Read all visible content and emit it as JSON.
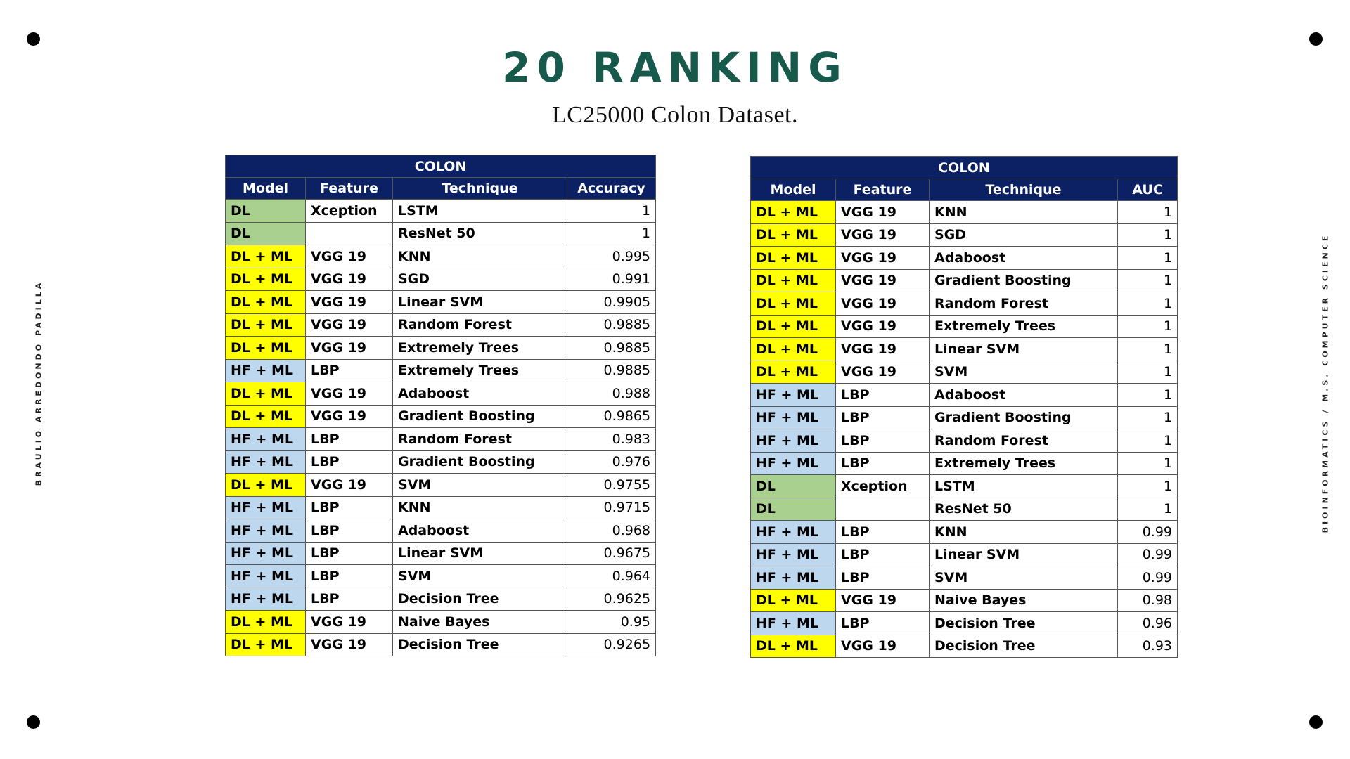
{
  "title": "20 RANKING",
  "subtitle": "LC25000 Colon Dataset.",
  "author": "BRAULIO ARREDONDO PADILLA",
  "program": "BIOINFORMATICS / M.S. COMPUTER SCIENCE",
  "colors": {
    "dl": "#a9d08e",
    "dl_ml": "#ffff00",
    "hf_ml": "#bdd7ee",
    "header": "#0c2164",
    "title": "#17594a"
  },
  "accuracy_table": {
    "group": "COLON",
    "columns": [
      "Model",
      "Feature",
      "Technique",
      "Accuracy"
    ],
    "rows": [
      {
        "model": "DL",
        "feature": "Xception",
        "technique": "LSTM",
        "value": "1"
      },
      {
        "model": "DL",
        "feature": "",
        "technique": "ResNet 50",
        "value": "1"
      },
      {
        "model": "DL + ML",
        "feature": "VGG 19",
        "technique": "KNN",
        "value": "0.995"
      },
      {
        "model": "DL + ML",
        "feature": "VGG 19",
        "technique": "SGD",
        "value": "0.991"
      },
      {
        "model": "DL + ML",
        "feature": "VGG 19",
        "technique": "Linear SVM",
        "value": "0.9905"
      },
      {
        "model": "DL + ML",
        "feature": "VGG 19",
        "technique": "Random Forest",
        "value": "0.9885"
      },
      {
        "model": "DL + ML",
        "feature": "VGG 19",
        "technique": "Extremely Trees",
        "value": "0.9885"
      },
      {
        "model": "HF + ML",
        "feature": "LBP",
        "technique": "Extremely Trees",
        "value": "0.9885"
      },
      {
        "model": "DL + ML",
        "feature": "VGG 19",
        "technique": "Adaboost",
        "value": "0.988"
      },
      {
        "model": "DL + ML",
        "feature": "VGG 19",
        "technique": "Gradient Boosting",
        "value": "0.9865"
      },
      {
        "model": "HF + ML",
        "feature": "LBP",
        "technique": "Random Forest",
        "value": "0.983"
      },
      {
        "model": "HF + ML",
        "feature": "LBP",
        "technique": "Gradient Boosting",
        "value": "0.976"
      },
      {
        "model": "DL + ML",
        "feature": "VGG 19",
        "technique": "SVM",
        "value": "0.9755"
      },
      {
        "model": "HF + ML",
        "feature": "LBP",
        "technique": "KNN",
        "value": "0.9715"
      },
      {
        "model": "HF + ML",
        "feature": "LBP",
        "technique": "Adaboost",
        "value": "0.968"
      },
      {
        "model": "HF + ML",
        "feature": "LBP",
        "technique": "Linear SVM",
        "value": "0.9675"
      },
      {
        "model": "HF + ML",
        "feature": "LBP",
        "technique": "SVM",
        "value": "0.964"
      },
      {
        "model": "HF + ML",
        "feature": "LBP",
        "technique": "Decision Tree",
        "value": "0.9625"
      },
      {
        "model": "DL + ML",
        "feature": "VGG 19",
        "technique": "Naive Bayes",
        "value": "0.95"
      },
      {
        "model": "DL + ML",
        "feature": "VGG 19",
        "technique": "Decision Tree",
        "value": "0.9265"
      }
    ]
  },
  "auc_table": {
    "group": "COLON",
    "columns": [
      "Model",
      "Feature",
      "Technique",
      "AUC"
    ],
    "rows": [
      {
        "model": "DL + ML",
        "feature": "VGG 19",
        "technique": "KNN",
        "value": "1"
      },
      {
        "model": "DL + ML",
        "feature": "VGG 19",
        "technique": "SGD",
        "value": "1"
      },
      {
        "model": "DL + ML",
        "feature": "VGG 19",
        "technique": "Adaboost",
        "value": "1"
      },
      {
        "model": "DL + ML",
        "feature": "VGG 19",
        "technique": "Gradient Boosting",
        "value": "1"
      },
      {
        "model": "DL + ML",
        "feature": "VGG 19",
        "technique": "Random Forest",
        "value": "1"
      },
      {
        "model": "DL + ML",
        "feature": "VGG 19",
        "technique": "Extremely Trees",
        "value": "1"
      },
      {
        "model": "DL + ML",
        "feature": "VGG 19",
        "technique": "Linear SVM",
        "value": "1"
      },
      {
        "model": "DL + ML",
        "feature": "VGG 19",
        "technique": "SVM",
        "value": "1"
      },
      {
        "model": "HF + ML",
        "feature": "LBP",
        "technique": "Adaboost",
        "value": "1"
      },
      {
        "model": "HF + ML",
        "feature": "LBP",
        "technique": "Gradient Boosting",
        "value": "1"
      },
      {
        "model": "HF + ML",
        "feature": "LBP",
        "technique": "Random Forest",
        "value": "1"
      },
      {
        "model": "HF + ML",
        "feature": "LBP",
        "technique": "Extremely Trees",
        "value": "1"
      },
      {
        "model": "DL",
        "feature": "Xception",
        "technique": "LSTM",
        "value": "1"
      },
      {
        "model": "DL",
        "feature": "",
        "technique": "ResNet 50",
        "value": "1"
      },
      {
        "model": "HF + ML",
        "feature": "LBP",
        "technique": "KNN",
        "value": "0.99"
      },
      {
        "model": "HF + ML",
        "feature": "LBP",
        "technique": "Linear SVM",
        "value": "0.99"
      },
      {
        "model": "HF + ML",
        "feature": "LBP",
        "technique": "SVM",
        "value": "0.99"
      },
      {
        "model": "DL + ML",
        "feature": "VGG 19",
        "technique": "Naive Bayes",
        "value": "0.98"
      },
      {
        "model": "HF + ML",
        "feature": "LBP",
        "technique": "Decision Tree",
        "value": "0.96"
      },
      {
        "model": "DL + ML",
        "feature": "VGG 19",
        "technique": "Decision Tree",
        "value": "0.93"
      }
    ]
  }
}
